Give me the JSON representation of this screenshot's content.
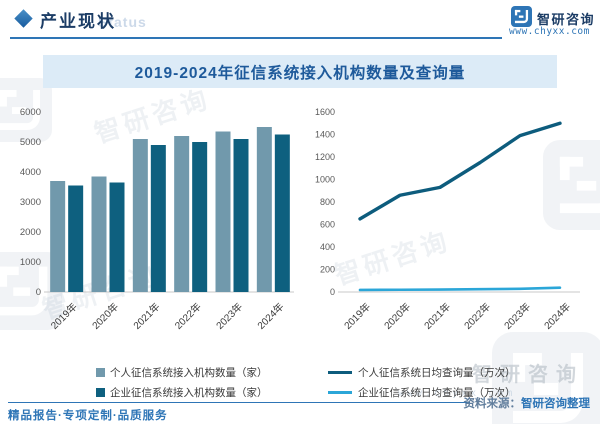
{
  "header": {
    "title": "产业现状",
    "status_watermark": "Status"
  },
  "branding": {
    "logo_text": "智研咨询",
    "website": "www.chyxx.com",
    "accent_color": "#2e75b6",
    "navy_color": "#1c3d66",
    "watermark_text": "智研咨询"
  },
  "banner": {
    "title": "2019-2024年征信系统接入机构数量及查询量",
    "bg_color": "#dcebf7",
    "text_color": "#1e5a9b"
  },
  "chart_data": [
    {
      "type": "bar",
      "title": "2019-2024年征信系统接入机构数量及查询量",
      "categories": [
        "2019年",
        "2020年",
        "2021年",
        "2022年",
        "2023年",
        "2024年"
      ],
      "series": [
        {
          "name": "个人征信系统接入机构数量（家）",
          "color": "#7199ac",
          "values": [
            3700,
            3850,
            5100,
            5200,
            5350,
            5500
          ]
        },
        {
          "name": "企业征信系统接入机构数量（家）",
          "color": "#0e607f",
          "values": [
            3550,
            3650,
            4900,
            5000,
            5100,
            5250
          ]
        }
      ],
      "xlabel": "",
      "ylabel": "",
      "ylim": [
        0,
        6000
      ],
      "ytick_step": 1000,
      "grid": false,
      "legend_position": "bottom"
    },
    {
      "type": "line",
      "title": "2019-2024年征信系统接入机构数量及查询量",
      "categories": [
        "2019年",
        "2020年",
        "2021年",
        "2022年",
        "2023年",
        "2024年"
      ],
      "series": [
        {
          "name": "个人征信系统日均查询量（万次）",
          "color": "#0d5c7d",
          "values": [
            650,
            860,
            930,
            1150,
            1390,
            1500
          ]
        },
        {
          "name": "企业征信系统日均查询量（万次）",
          "color": "#2ba6d8",
          "values": [
            18,
            20,
            22,
            25,
            28,
            38
          ]
        }
      ],
      "xlabel": "",
      "ylabel": "",
      "ylim": [
        0,
        1600
      ],
      "ytick_step": 200,
      "grid": false,
      "legend_position": "bottom"
    }
  ],
  "footer": {
    "tagline": "精品报告·专项定制·品质服务",
    "source_label": "资料来源：",
    "source_value": "智研咨询整理"
  }
}
